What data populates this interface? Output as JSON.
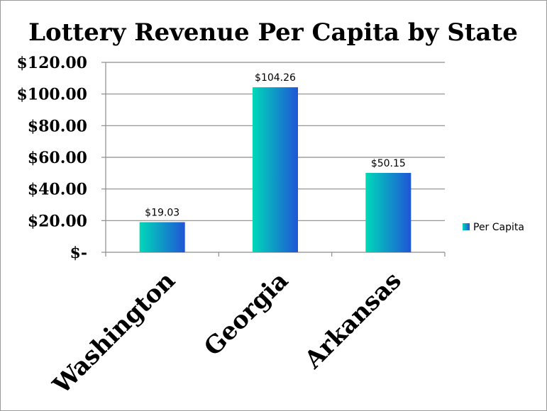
{
  "chart_data": {
    "type": "bar",
    "title": "Lottery Revenue Per Capita by State",
    "xlabel": "",
    "ylabel": "",
    "categories": [
      "Washington",
      "Georgia",
      "Arkansas"
    ],
    "series": [
      {
        "name": "Per Capita",
        "values": [
          19.03,
          104.26,
          50.15
        ],
        "labels": [
          "$19.03",
          "$104.26",
          "$50.15"
        ]
      }
    ],
    "ylim": [
      0,
      120
    ],
    "yticks": [
      0,
      20,
      40,
      60,
      80,
      100,
      120
    ],
    "ytick_labels": [
      "$-",
      "$20.00",
      "$40.00",
      "$60.00",
      "$80.00",
      "$100.00",
      "$120.00"
    ],
    "grid": true,
    "legend_position": "right",
    "colors": {
      "bar_gradient_start": "#00d8b8",
      "bar_gradient_end": "#1f55d6",
      "gridline": "#8c8c8c",
      "axis": "#8c8c8c"
    }
  }
}
